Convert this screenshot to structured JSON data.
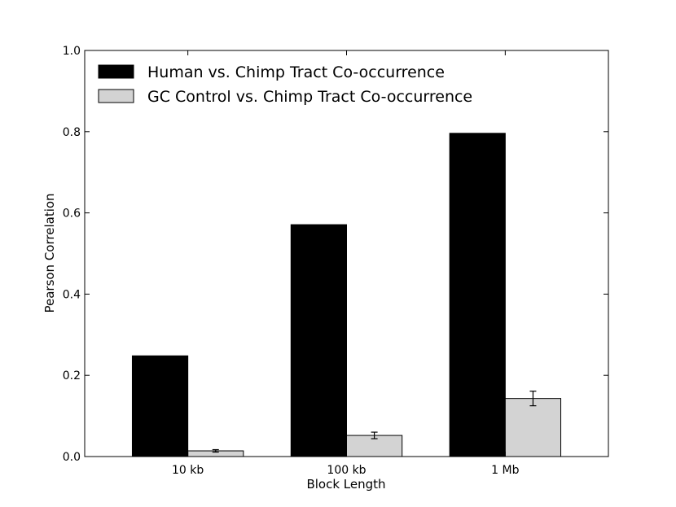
{
  "chart_data": {
    "type": "bar",
    "title": "",
    "xlabel": "Block Length",
    "ylabel": "Pearson Correlation",
    "categories": [
      "10 kb",
      "100 kb",
      "1 Mb"
    ],
    "ylim": [
      0.0,
      1.0
    ],
    "yticks": [
      "0.0",
      "0.2",
      "0.4",
      "0.6",
      "0.8",
      "1.0"
    ],
    "grid": false,
    "legend_position": "top-left",
    "series": [
      {
        "name": "Human vs. Chimp Tract Co-occurrence",
        "color": "#000000",
        "values": [
          0.248,
          0.571,
          0.796
        ]
      },
      {
        "name": "GC Control vs. Chimp Tract Co-occurrence",
        "color": "#d3d3d3",
        "values": [
          0.014,
          0.052,
          0.143
        ],
        "error": [
          0.003,
          0.008,
          0.018
        ]
      }
    ]
  }
}
